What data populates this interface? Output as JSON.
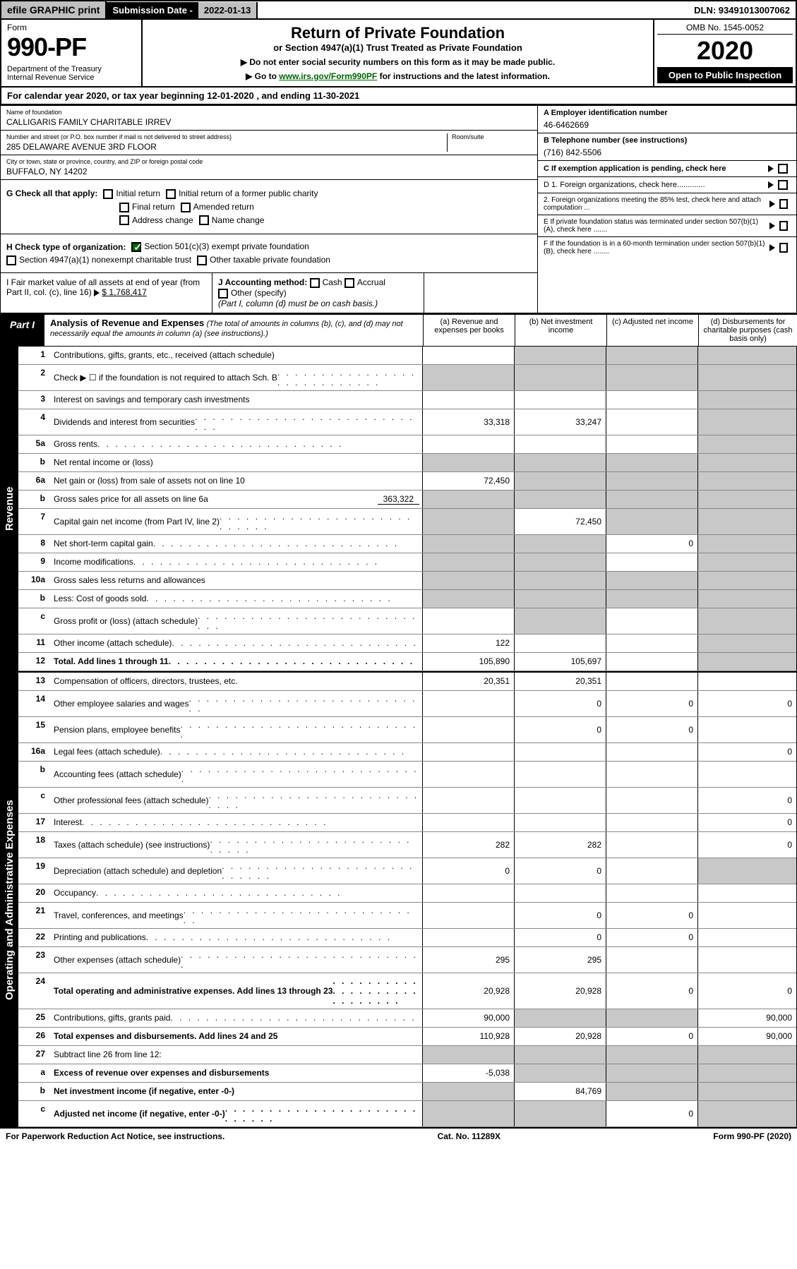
{
  "top": {
    "efile": "efile GRAPHIC print",
    "sub_date_label": "Submission Date - ",
    "sub_date": "2022-01-13",
    "dln": "DLN: 93491013007062"
  },
  "header": {
    "form_label": "Form",
    "form_num": "990-PF",
    "dept": "Department of the Treasury\nInternal Revenue Service",
    "title": "Return of Private Foundation",
    "subtitle": "or Section 4947(a)(1) Trust Treated as Private Foundation",
    "instr1": "▶ Do not enter social security numbers on this form as it may be made public.",
    "instr2": "▶ Go to ",
    "instr2_link": "www.irs.gov/Form990PF",
    "instr2_tail": " for instructions and the latest information.",
    "omb": "OMB No. 1545-0052",
    "year": "2020",
    "open": "Open to Public Inspection"
  },
  "cal_year": "For calendar year 2020, or tax year beginning 12-01-2020                          , and ending 11-30-2021",
  "info": {
    "name_label": "Name of foundation",
    "name": "CALLIGARIS FAMILY CHARITABLE IRREV",
    "addr_label": "Number and street (or P.O. box number if mail is not delivered to street address)",
    "addr": "285 DELAWARE AVENUE 3RD FLOOR",
    "room_label": "Room/suite",
    "city_label": "City or town, state or province, country, and ZIP or foreign postal code",
    "city": "BUFFALO, NY  14202",
    "ein_label": "A Employer identification number",
    "ein": "46-6462669",
    "phone_label": "B Telephone number (see instructions)",
    "phone": "(716) 842-5506",
    "c_label": "C If exemption application is pending, check here",
    "d1": "D 1. Foreign organizations, check here.............",
    "d2": "    2. Foreign organizations meeting the 85% test, check here and attach computation ...",
    "e_label": "E  If private foundation status was terminated under section 507(b)(1)(A), check here .......",
    "f_label": "F  If the foundation is in a 60-month termination under section 507(b)(1)(B), check here ........"
  },
  "g": {
    "label": "G Check all that apply:",
    "opts": [
      "Initial return",
      "Initial return of a former public charity",
      "Final return",
      "Amended return",
      "Address change",
      "Name change"
    ]
  },
  "h": {
    "label": "H Check type of organization:",
    "opt1": "Section 501(c)(3) exempt private foundation",
    "opt2": "Section 4947(a)(1) nonexempt charitable trust",
    "opt3": "Other taxable private foundation"
  },
  "i": {
    "label": "I Fair market value of all assets at end of year (from Part II, col. (c), line 16)",
    "val": "$  1,768,417"
  },
  "j": {
    "label": "J Accounting method:",
    "cash": "Cash",
    "accrual": "Accrual",
    "other": "Other (specify)",
    "note": "(Part I, column (d) must be on cash basis.)"
  },
  "part1": {
    "label": "Part I",
    "title": "Analysis of Revenue and Expenses",
    "note": "(The total of amounts in columns (b), (c), and (d) may not necessarily equal the amounts in column (a) (see instructions).)",
    "col_a": "(a)   Revenue and expenses per books",
    "col_b": "(b)   Net investment income",
    "col_c": "(c)   Adjusted net income",
    "col_d": "(d)   Disbursements for charitable purposes (cash basis only)"
  },
  "sections": {
    "revenue": "Revenue",
    "expenses": "Operating and Administrative Expenses"
  },
  "rows": [
    {
      "n": "1",
      "label": "Contributions, gifts, grants, etc., received (attach schedule)",
      "a": "",
      "b": "shade",
      "c": "shade",
      "d": "shade"
    },
    {
      "n": "2",
      "label": "Check ▶ ☐ if the foundation is not required to attach Sch. B",
      "dots": true,
      "a": "shade",
      "b": "shade",
      "c": "shade",
      "d": "shade"
    },
    {
      "n": "3",
      "label": "Interest on savings and temporary cash investments",
      "a": "",
      "b": "",
      "c": "",
      "d": "shade"
    },
    {
      "n": "4",
      "label": "Dividends and interest from securities",
      "dots": true,
      "a": "33,318",
      "b": "33,247",
      "c": "",
      "d": "shade"
    },
    {
      "n": "5a",
      "label": "Gross rents",
      "dots": true,
      "a": "",
      "b": "",
      "c": "",
      "d": "shade"
    },
    {
      "n": "b",
      "label": "Net rental income or (loss)",
      "a": "shade",
      "b": "shade",
      "c": "shade",
      "d": "shade"
    },
    {
      "n": "6a",
      "label": "Net gain or (loss) from sale of assets not on line 10",
      "a": "72,450",
      "b": "shade",
      "c": "shade",
      "d": "shade"
    },
    {
      "n": "b",
      "label": "Gross sales price for all assets on line 6a",
      "extra": "363,322",
      "a": "shade",
      "b": "shade",
      "c": "shade",
      "d": "shade"
    },
    {
      "n": "7",
      "label": "Capital gain net income (from Part IV, line 2)",
      "dots": true,
      "a": "shade",
      "b": "72,450",
      "c": "shade",
      "d": "shade"
    },
    {
      "n": "8",
      "label": "Net short-term capital gain",
      "dots": true,
      "a": "shade",
      "b": "shade",
      "c": "0",
      "d": "shade"
    },
    {
      "n": "9",
      "label": "Income modifications",
      "dots": true,
      "a": "shade",
      "b": "shade",
      "c": "",
      "d": "shade"
    },
    {
      "n": "10a",
      "label": "Gross sales less returns and allowances",
      "a": "shade",
      "b": "shade",
      "c": "shade",
      "d": "shade"
    },
    {
      "n": "b",
      "label": "Less: Cost of goods sold",
      "dots": true,
      "a": "shade",
      "b": "shade",
      "c": "shade",
      "d": "shade"
    },
    {
      "n": "c",
      "label": "Gross profit or (loss) (attach schedule)",
      "dots": true,
      "a": "",
      "b": "shade",
      "c": "",
      "d": "shade"
    },
    {
      "n": "11",
      "label": "Other income (attach schedule)",
      "dots": true,
      "a": "122",
      "b": "",
      "c": "",
      "d": "shade"
    },
    {
      "n": "12",
      "label": "Total. Add lines 1 through 11",
      "bold": true,
      "dots": true,
      "a": "105,890",
      "b": "105,697",
      "c": "",
      "d": "shade"
    }
  ],
  "exp_rows": [
    {
      "n": "13",
      "label": "Compensation of officers, directors, trustees, etc.",
      "a": "20,351",
      "b": "20,351",
      "c": "",
      "d": ""
    },
    {
      "n": "14",
      "label": "Other employee salaries and wages",
      "dots": true,
      "a": "",
      "b": "0",
      "c": "0",
      "d": "0"
    },
    {
      "n": "15",
      "label": "Pension plans, employee benefits",
      "dots": true,
      "a": "",
      "b": "0",
      "c": "0",
      "d": ""
    },
    {
      "n": "16a",
      "label": "Legal fees (attach schedule)",
      "dots": true,
      "a": "",
      "b": "",
      "c": "",
      "d": "0"
    },
    {
      "n": "b",
      "label": "Accounting fees (attach schedule)",
      "dots": true,
      "a": "",
      "b": "",
      "c": "",
      "d": ""
    },
    {
      "n": "c",
      "label": "Other professional fees (attach schedule)",
      "dots": true,
      "a": "",
      "b": "",
      "c": "",
      "d": "0"
    },
    {
      "n": "17",
      "label": "Interest",
      "dots": true,
      "a": "",
      "b": "",
      "c": "",
      "d": "0"
    },
    {
      "n": "18",
      "label": "Taxes (attach schedule) (see instructions)",
      "dots": true,
      "a": "282",
      "b": "282",
      "c": "",
      "d": "0"
    },
    {
      "n": "19",
      "label": "Depreciation (attach schedule) and depletion",
      "dots": true,
      "a": "0",
      "b": "0",
      "c": "",
      "d": "shade"
    },
    {
      "n": "20",
      "label": "Occupancy",
      "dots": true,
      "a": "",
      "b": "",
      "c": "",
      "d": ""
    },
    {
      "n": "21",
      "label": "Travel, conferences, and meetings",
      "dots": true,
      "a": "",
      "b": "0",
      "c": "0",
      "d": ""
    },
    {
      "n": "22",
      "label": "Printing and publications",
      "dots": true,
      "a": "",
      "b": "0",
      "c": "0",
      "d": ""
    },
    {
      "n": "23",
      "label": "Other expenses (attach schedule)",
      "dots": true,
      "a": "295",
      "b": "295",
      "c": "",
      "d": ""
    },
    {
      "n": "24",
      "label": "Total operating and administrative expenses. Add lines 13 through 23",
      "bold": true,
      "dots": true,
      "a": "20,928",
      "b": "20,928",
      "c": "0",
      "d": "0"
    },
    {
      "n": "25",
      "label": "Contributions, gifts, grants paid",
      "dots": true,
      "a": "90,000",
      "b": "shade",
      "c": "shade",
      "d": "90,000"
    },
    {
      "n": "26",
      "label": "Total expenses and disbursements. Add lines 24 and 25",
      "bold": true,
      "a": "110,928",
      "b": "20,928",
      "c": "0",
      "d": "90,000"
    },
    {
      "n": "27",
      "label": "Subtract line 26 from line 12:",
      "a": "shade",
      "b": "shade",
      "c": "shade",
      "d": "shade"
    },
    {
      "n": "a",
      "label": "Excess of revenue over expenses and disbursements",
      "bold": true,
      "a": "-5,038",
      "b": "shade",
      "c": "shade",
      "d": "shade"
    },
    {
      "n": "b",
      "label": "Net investment income (if negative, enter -0-)",
      "bold": true,
      "a": "shade",
      "b": "84,769",
      "c": "shade",
      "d": "shade"
    },
    {
      "n": "c",
      "label": "Adjusted net income (if negative, enter -0-)",
      "bold": true,
      "dots": true,
      "a": "shade",
      "b": "shade",
      "c": "0",
      "d": "shade"
    }
  ],
  "footer": {
    "left": "For Paperwork Reduction Act Notice, see instructions.",
    "mid": "Cat. No. 11289X",
    "right": "Form 990-PF (2020)"
  }
}
